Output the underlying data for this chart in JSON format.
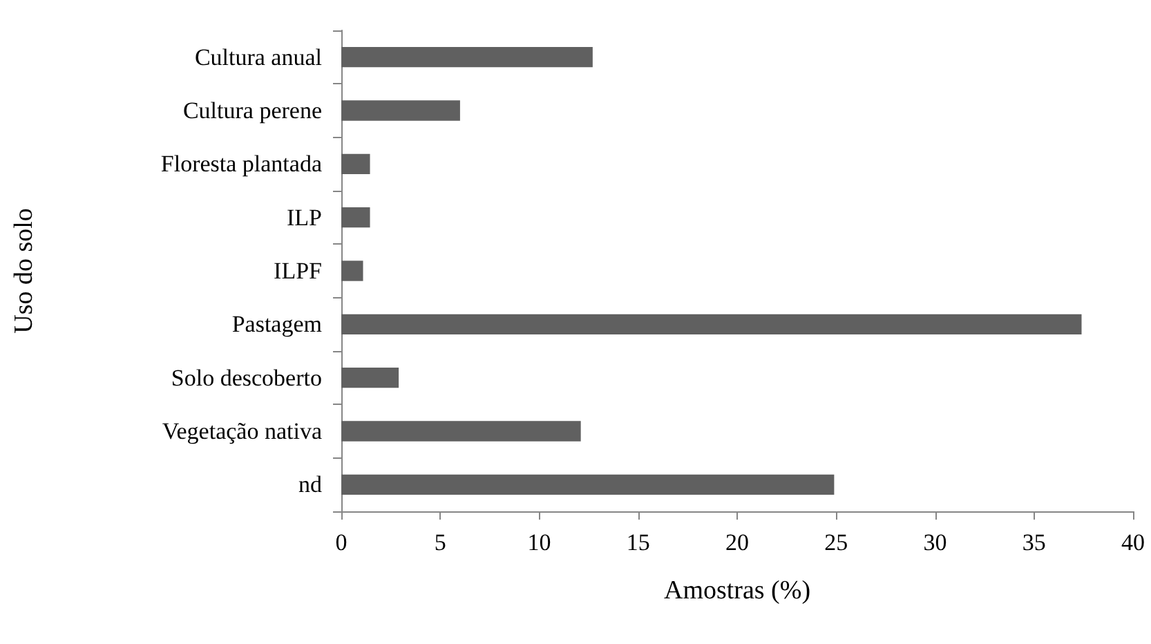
{
  "chart_data": {
    "type": "bar",
    "orientation": "horizontal",
    "xlabel": "Amostras (%)",
    "ylabel": "Uso do solo",
    "categories": [
      "Cultura anual",
      "Cultura perene",
      "Floresta plantada",
      "ILP",
      "ILPF",
      "Pastagem",
      "Solo descoberto",
      "Vegetação nativa",
      "nd"
    ],
    "values": [
      12.7,
      6.0,
      1.45,
      1.45,
      1.1,
      37.4,
      2.9,
      12.1,
      24.9
    ],
    "color": "#606060",
    "xlim": [
      0,
      40
    ],
    "xticks": [
      0,
      5,
      10,
      15,
      20,
      25,
      30,
      35,
      40
    ]
  }
}
